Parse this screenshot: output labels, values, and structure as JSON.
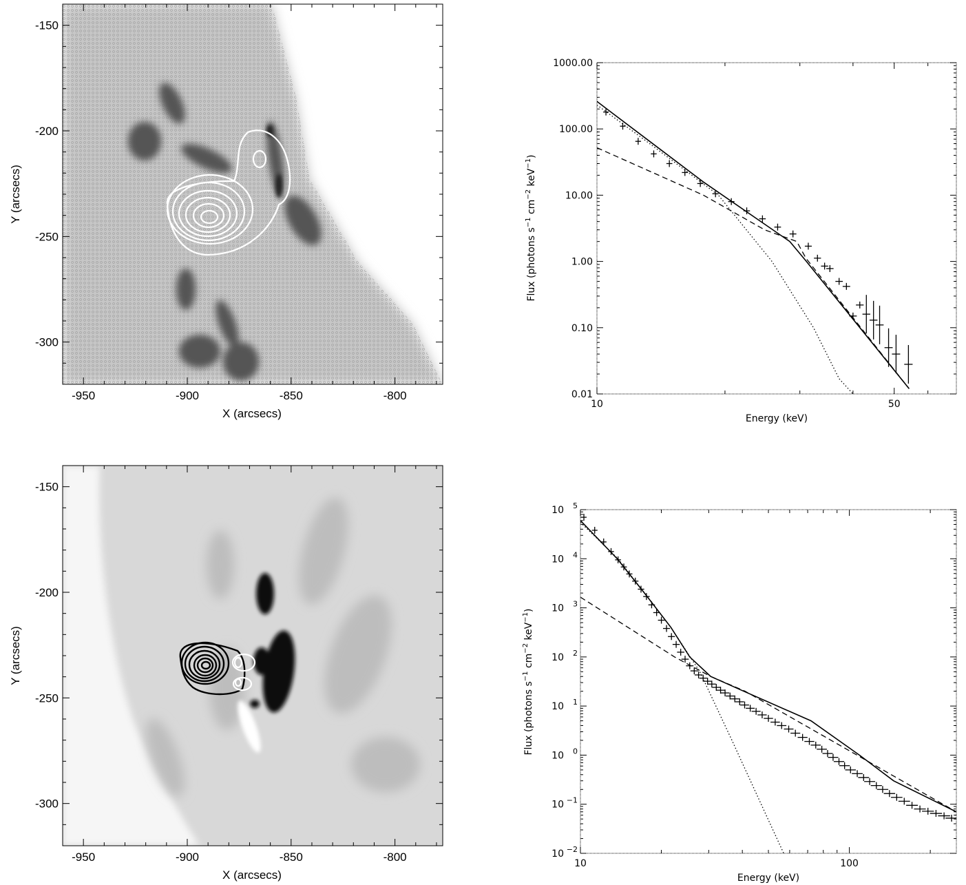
{
  "chart_data": [
    {
      "type": "image",
      "panel": "top-left",
      "xlabel": "X (arcsecs)",
      "ylabel": "Y (arcsecs)",
      "xlim": [
        -960,
        -777
      ],
      "ylim": [
        -320,
        -140
      ],
      "xticks": [
        -950,
        -900,
        -850,
        -800
      ],
      "yticks": [
        -150,
        -200,
        -250,
        -300
      ],
      "xtick_labels": [
        "-950",
        "-900",
        "-850",
        "-800"
      ],
      "ytick_labels": [
        "-150",
        "-200",
        "-250",
        "-300"
      ],
      "contour_color": "#ffffff",
      "contour_sources": [
        {
          "center": [
            -884,
            -242
          ],
          "levels": 7
        },
        {
          "center": [
            -862,
            -213
          ],
          "levels": 2
        }
      ]
    },
    {
      "type": "scatter",
      "panel": "top-right",
      "xlabel": "Energy (keV)",
      "ylabel": "Flux (photons s-1 cm-2 keV-1)",
      "xscale": "log",
      "yscale": "log",
      "xlim": [
        10,
        70
      ],
      "ylim": [
        0.01,
        1000
      ],
      "xtick_labels": [
        "10",
        "50"
      ],
      "xtick_values": [
        10,
        50
      ],
      "ytick_labels": [
        "1000.00",
        "100.00",
        "10.00",
        "1.00",
        "0.10",
        "0.01"
      ],
      "ytick_values": [
        1000,
        100,
        10,
        1,
        0.1,
        0.01
      ],
      "series": [
        {
          "style": "data-crosses",
          "x": [
            10.5,
            11.5,
            12.5,
            13.6,
            14.8,
            16.1,
            17.5,
            19.0,
            20.7,
            22.5,
            24.5,
            26.6,
            28.9,
            31.4,
            33.0,
            34.3,
            35.3,
            37.1,
            38.6,
            40.0,
            41.5,
            43.0,
            44.7,
            46.2,
            48.5,
            50.5,
            54.0
          ],
          "y": [
            180,
            110,
            65,
            42,
            30,
            22,
            15,
            10.5,
            8,
            5.8,
            4.4,
            3.3,
            2.6,
            1.7,
            1.12,
            0.85,
            0.78,
            0.5,
            0.42,
            0.15,
            0.22,
            0.16,
            0.13,
            0.11,
            0.05,
            0.04,
            0.028
          ]
        },
        {
          "style": "solid",
          "x": [
            10,
            13.3,
            17.8,
            25.2,
            28.4,
            30.9,
            54.2
          ],
          "y": [
            260,
            65,
            15.8,
            3.4,
            2.0,
            1.05,
            0.012
          ]
        },
        {
          "style": "dashed",
          "x": [
            10,
            17.8,
            24.8,
            29.5,
            31.0,
            54.2
          ],
          "y": [
            52,
            10.0,
            3.0,
            2.0,
            1.12,
            0.012
          ]
        },
        {
          "style": "dotted",
          "x": [
            10,
            13.3,
            19.3,
            25.8,
            32.3,
            37.1,
            40.0
          ],
          "y": [
            230,
            60,
            10,
            1.0,
            0.1,
            0.017,
            0.01
          ]
        }
      ]
    },
    {
      "type": "image",
      "panel": "bottom-left",
      "xlabel": "X (arcsecs)",
      "ylabel": "Y (arcsecs)",
      "xlim": [
        -960,
        -777
      ],
      "ylim": [
        -320,
        -140
      ],
      "xticks": [
        -950,
        -900,
        -850,
        -800
      ],
      "yticks": [
        -150,
        -200,
        -250,
        -300
      ],
      "xtick_labels": [
        "-950",
        "-900",
        "-850",
        "-800"
      ],
      "ytick_labels": [
        "-150",
        "-200",
        "-250",
        "-300"
      ],
      "contour_colors": [
        "#000000",
        "#ffffff"
      ],
      "contour_sources": [
        {
          "center": [
            -888,
            -235
          ],
          "levels": 7,
          "color": "black"
        },
        {
          "center": [
            -870,
            -236
          ],
          "levels": 2,
          "color": "white"
        },
        {
          "center": [
            -870,
            -246
          ],
          "levels": 2,
          "color": "white"
        }
      ]
    },
    {
      "type": "scatter",
      "panel": "bottom-right",
      "xlabel": "Energy (keV)",
      "ylabel": "Flux (photons s-1 cm-2 keV-1)",
      "xscale": "log",
      "yscale": "log",
      "xlim": [
        10,
        250
      ],
      "ylim": [
        0.01,
        100000
      ],
      "xtick_labels": [
        "10",
        "100"
      ],
      "xtick_values": [
        10,
        100
      ],
      "ytick_base": "10",
      "ytick_exponents": [
        "5",
        "4",
        "3",
        "2",
        "1",
        "0",
        "−1",
        "−2"
      ],
      "ytick_values": [
        100000,
        10000,
        1000,
        100,
        10,
        1,
        0.1,
        0.01
      ],
      "series": [
        {
          "style": "data-crosses",
          "x": [
            10.3,
            11.3,
            12.2,
            13.0,
            13.8,
            14.5,
            15.2,
            16.0,
            16.8,
            17.6,
            18.4,
            19.2,
            20.0,
            20.9,
            21.8,
            22.7,
            23.6,
            24.5,
            25.5,
            26.5,
            27.5,
            28.6,
            29.7,
            30.8,
            32.0,
            33.2,
            34.5,
            36.0,
            37.5,
            39.1,
            40.8,
            42.8,
            45.0,
            47.4,
            50.0,
            53.0,
            56.0,
            59.5,
            63.0,
            67.0,
            71.0,
            75.0,
            79.0,
            83.0,
            87.0,
            91.5,
            96.0,
            101.0,
            107.0,
            113.0,
            119.0,
            126.0,
            133.0,
            141.0,
            150.0,
            160.0,
            171.0,
            183.0,
            196.0,
            210.0,
            225.0,
            240.0
          ],
          "y": [
            70000,
            38000,
            22000,
            14000,
            9500,
            6800,
            4900,
            3500,
            2400,
            1700,
            1150,
            800,
            560,
            380,
            260,
            180,
            125,
            90,
            66,
            52,
            43,
            37,
            32,
            28,
            24,
            21,
            18.5,
            16,
            14,
            12.2,
            10.5,
            9.0,
            7.8,
            6.6,
            5.6,
            4.7,
            4.0,
            3.4,
            2.8,
            2.3,
            1.9,
            1.6,
            1.32,
            1.08,
            0.9,
            0.74,
            0.61,
            0.5,
            0.42,
            0.35,
            0.29,
            0.24,
            0.2,
            0.165,
            0.138,
            0.115,
            0.095,
            0.08,
            0.072,
            0.065,
            0.058,
            0.052
          ]
        },
        {
          "style": "solid",
          "x": [
            10,
            13.7,
            17.3,
            21.7,
            25.5,
            30.5,
            40.5,
            72,
            109,
            146,
            250
          ],
          "y": [
            60000,
            10000,
            2000,
            400,
            100,
            40,
            20,
            5,
            1,
            0.3,
            0.07
          ]
        },
        {
          "style": "dashed",
          "x": [
            10,
            22.4,
            30.5,
            41.0,
            250
          ],
          "y": [
            1650,
            100,
            40,
            20,
            0.07
          ]
        },
        {
          "style": "dotted",
          "x": [
            10,
            13.8,
            17.3,
            21.7,
            27.8,
            36.6,
            47.0,
            57.0
          ],
          "y": [
            55000,
            10000,
            2000,
            400,
            50,
            2,
            0.1,
            0.01
          ]
        }
      ]
    }
  ]
}
